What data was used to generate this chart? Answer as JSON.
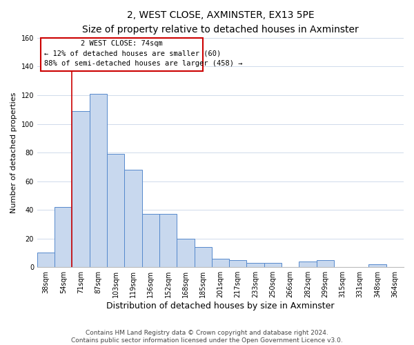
{
  "title": "2, WEST CLOSE, AXMINSTER, EX13 5PE",
  "subtitle": "Size of property relative to detached houses in Axminster",
  "xlabel": "Distribution of detached houses by size in Axminster",
  "ylabel": "Number of detached properties",
  "bar_labels": [
    "38sqm",
    "54sqm",
    "71sqm",
    "87sqm",
    "103sqm",
    "119sqm",
    "136sqm",
    "152sqm",
    "168sqm",
    "185sqm",
    "201sqm",
    "217sqm",
    "233sqm",
    "250sqm",
    "266sqm",
    "282sqm",
    "299sqm",
    "315sqm",
    "331sqm",
    "348sqm",
    "364sqm"
  ],
  "bar_heights": [
    10,
    42,
    109,
    121,
    79,
    68,
    37,
    37,
    20,
    14,
    6,
    5,
    3,
    3,
    0,
    4,
    5,
    0,
    0,
    2,
    0
  ],
  "bar_color": "#c8d8ee",
  "bar_edge_color": "#5588cc",
  "ylim": [
    0,
    160
  ],
  "yticks": [
    0,
    20,
    40,
    60,
    80,
    100,
    120,
    140,
    160
  ],
  "vline_color": "#cc0000",
  "annotation_title": "2 WEST CLOSE: 74sqm",
  "annotation_line1": "← 12% of detached houses are smaller (60)",
  "annotation_line2": "88% of semi-detached houses are larger (458) →",
  "annotation_box_color": "#cc0000",
  "footer_line1": "Contains HM Land Registry data © Crown copyright and database right 2024.",
  "footer_line2": "Contains public sector information licensed under the Open Government Licence v3.0.",
  "title_fontsize": 10,
  "subtitle_fontsize": 9,
  "xlabel_fontsize": 9,
  "ylabel_fontsize": 8,
  "tick_fontsize": 7,
  "annotation_fontsize": 7.5,
  "footer_fontsize": 6.5,
  "background_color": "#ffffff",
  "grid_color": "#c8d4e8"
}
